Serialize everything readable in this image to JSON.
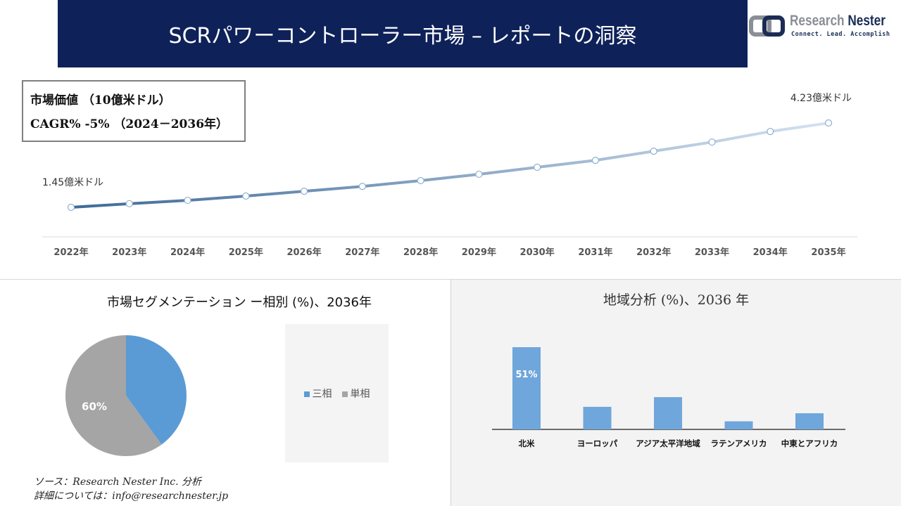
{
  "header": {
    "title": "SCRパワーコントローラー市場 – レポートの洞察"
  },
  "logo": {
    "name_light": "Research ",
    "name_dark": "Nester",
    "tagline": "Connect. Lead. Accomplish"
  },
  "infobox": {
    "line1": "市場価値 （10億米ドル）",
    "line2": "CAGR% -5% （2024－2036年）"
  },
  "colors": {
    "banner": "#0e2159",
    "line_start": "#3e6a98",
    "line_end": "#d5e2f0",
    "pie_three": "#5b9bd5",
    "pie_single": "#a5a5a5",
    "bar": "#6fa6db"
  },
  "chart_data": [
    {
      "type": "line",
      "categories": [
        "2022年",
        "2023年",
        "2024年",
        "2025年",
        "2026年",
        "2027年",
        "2028年",
        "2029年",
        "2030年",
        "2031年",
        "2032年",
        "2033年",
        "2034年",
        "2035年"
      ],
      "values": [
        1.45,
        1.57,
        1.68,
        1.82,
        1.98,
        2.14,
        2.33,
        2.54,
        2.77,
        3.0,
        3.3,
        3.6,
        3.95,
        4.23
      ],
      "annotations": {
        "start": "1.45億米ドル",
        "end": "4.23億米ドル"
      },
      "grid": false
    },
    {
      "type": "pie",
      "title": "市場セグメンテーション ー相別 (%)、2036年",
      "slices": [
        {
          "name": "三相",
          "value": 40
        },
        {
          "name": "単相",
          "value": 60,
          "label": "60%"
        }
      ],
      "legend": "right"
    },
    {
      "type": "bar",
      "title": "地域分析 (%)、2036 年",
      "categories": [
        "北米",
        "ヨーロッパ",
        "アジア太平洋地域",
        "ラテンアメリカ",
        "中東とアフリカ"
      ],
      "values": [
        51,
        14,
        20,
        5,
        10
      ],
      "data_labels": [
        "51%",
        "",
        "",
        "",
        ""
      ]
    }
  ],
  "source": {
    "line1": "ソース：Research Nester Inc. 分析",
    "line2": "詳細については：info@researchnester.jp"
  }
}
